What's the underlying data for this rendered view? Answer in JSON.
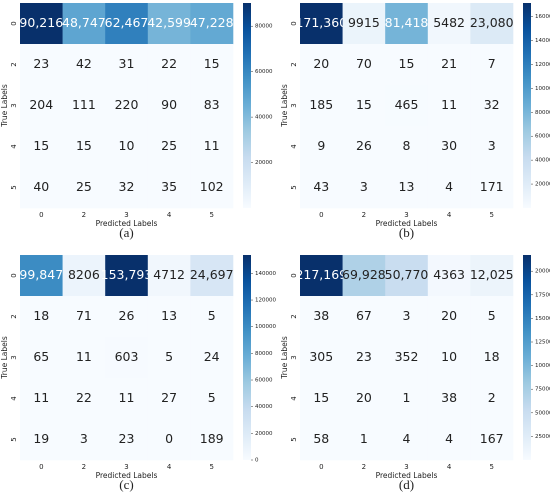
{
  "chart_data": [
    {
      "type": "heatmap",
      "caption": "(a)",
      "xlabel": "Predicted Labels",
      "ylabel": "True Labels",
      "colormap": "Blues",
      "x_categories": [
        "0",
        "2",
        "3",
        "4",
        "5"
      ],
      "y_categories": [
        "0",
        "2",
        "3",
        "4",
        "5"
      ],
      "values": [
        [
          90216,
          48747,
          62467,
          42599,
          47228
        ],
        [
          23,
          42,
          31,
          22,
          15
        ],
        [
          204,
          111,
          220,
          90,
          83
        ],
        [
          15,
          15,
          10,
          25,
          11
        ],
        [
          40,
          25,
          32,
          35,
          102
        ]
      ],
      "value_labels": [
        [
          "90,216",
          "48,747",
          "62,467",
          "42,599",
          "47,228"
        ],
        [
          "23",
          "42",
          "31",
          "22",
          "15"
        ],
        [
          "204",
          "111",
          "220",
          "90",
          "83"
        ],
        [
          "15",
          "15",
          "10",
          "25",
          "11"
        ],
        [
          "40",
          "25",
          "32",
          "35",
          "102"
        ]
      ],
      "zlim": [
        10,
        90216
      ],
      "zticks": [
        20000,
        40000,
        60000,
        80000
      ]
    },
    {
      "type": "heatmap",
      "caption": "(b)",
      "xlabel": "Predicted Labels",
      "ylabel": "True Labels",
      "colormap": "Blues",
      "x_categories": [
        "0",
        "2",
        "3",
        "4",
        "5"
      ],
      "y_categories": [
        "0",
        "2",
        "3",
        "4",
        "5"
      ],
      "values": [
        [
          171360,
          9915,
          81418,
          5482,
          23080
        ],
        [
          20,
          70,
          15,
          21,
          7
        ],
        [
          185,
          15,
          465,
          11,
          32
        ],
        [
          9,
          26,
          8,
          30,
          3
        ],
        [
          43,
          3,
          13,
          4,
          171
        ]
      ],
      "value_labels": [
        [
          "171,360",
          "9915",
          "81,418",
          "5482",
          "23,080"
        ],
        [
          "20",
          "70",
          "15",
          "21",
          "7"
        ],
        [
          "185",
          "15",
          "465",
          "11",
          "32"
        ],
        [
          "9",
          "26",
          "8",
          "30",
          "3"
        ],
        [
          "43",
          "3",
          "13",
          "4",
          "171"
        ]
      ],
      "zlim": [
        3,
        171360
      ],
      "zticks": [
        20000,
        40000,
        60000,
        80000,
        100000,
        120000,
        140000,
        160000
      ]
    },
    {
      "type": "heatmap",
      "caption": "(c)",
      "xlabel": "Predicted Labels",
      "ylabel": "True Labels",
      "colormap": "Blues",
      "x_categories": [
        "0",
        "2",
        "3",
        "4",
        "5"
      ],
      "y_categories": [
        "0",
        "2",
        "3",
        "4",
        "5"
      ],
      "values": [
        [
          99847,
          8206,
          153793,
          4712,
          24697
        ],
        [
          18,
          71,
          26,
          13,
          5
        ],
        [
          65,
          11,
          603,
          5,
          24
        ],
        [
          11,
          22,
          11,
          27,
          5
        ],
        [
          19,
          3,
          23,
          0,
          189
        ]
      ],
      "value_labels": [
        [
          "99,847",
          "8206",
          "153,793",
          "4712",
          "24,697"
        ],
        [
          "18",
          "71",
          "26",
          "13",
          "5"
        ],
        [
          "65",
          "11",
          "603",
          "5",
          "24"
        ],
        [
          "11",
          "22",
          "11",
          "27",
          "5"
        ],
        [
          "19",
          "3",
          "23",
          "0",
          "189"
        ]
      ],
      "zlim": [
        0,
        153793
      ],
      "zticks": [
        0,
        20000,
        40000,
        60000,
        80000,
        100000,
        120000,
        140000
      ]
    },
    {
      "type": "heatmap",
      "caption": "(d)",
      "xlabel": "Predicted Labels",
      "ylabel": "True Labels",
      "colormap": "Blues",
      "x_categories": [
        "0",
        "2",
        "3",
        "4",
        "5"
      ],
      "y_categories": [
        "0",
        "2",
        "3",
        "4",
        "5"
      ],
      "values": [
        [
          217169,
          69928,
          50770,
          4363,
          12025
        ],
        [
          38,
          67,
          3,
          20,
          5
        ],
        [
          305,
          23,
          352,
          10,
          18
        ],
        [
          15,
          20,
          1,
          38,
          2
        ],
        [
          58,
          1,
          4,
          4,
          167
        ]
      ],
      "value_labels": [
        [
          "217,169",
          "69,928",
          "50,770",
          "4363",
          "12,025"
        ],
        [
          "38",
          "67",
          "3",
          "20",
          "5"
        ],
        [
          "305",
          "23",
          "352",
          "10",
          "18"
        ],
        [
          "15",
          "20",
          "1",
          "38",
          "2"
        ],
        [
          "58",
          "1",
          "4",
          "4",
          "167"
        ]
      ],
      "zlim": [
        1,
        217169
      ],
      "zticks": [
        25000,
        50000,
        75000,
        100000,
        125000,
        150000,
        175000,
        200000
      ]
    }
  ]
}
